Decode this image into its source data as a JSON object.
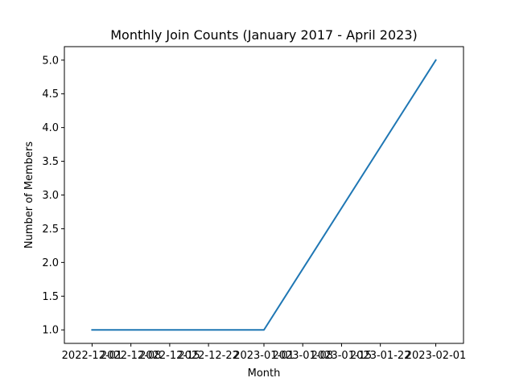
{
  "chart_data": {
    "type": "line",
    "title": "Monthly Join Counts (January 2017 - April 2023)",
    "xlabel": "Month",
    "ylabel": "Number of Members",
    "x_tick_labels": [
      "2022-12-01",
      "2022-12-08",
      "2022-12-15",
      "2022-12-22",
      "2023-01-01",
      "2023-01-08",
      "2023-01-15",
      "2023-01-22",
      "2023-02-01"
    ],
    "y_tick_labels": [
      "1.0",
      "1.5",
      "2.0",
      "2.5",
      "3.0",
      "3.5",
      "4.0",
      "4.5",
      "5.0"
    ],
    "ylim": [
      0.8,
      5.2
    ],
    "xlim": [
      "2022-11-26",
      "2023-02-06"
    ],
    "grid": false,
    "series": [
      {
        "color": "#1f77b4",
        "x": [
          "2022-12-01",
          "2023-01-01",
          "2023-02-01"
        ],
        "y": [
          1,
          1,
          5
        ]
      }
    ]
  }
}
